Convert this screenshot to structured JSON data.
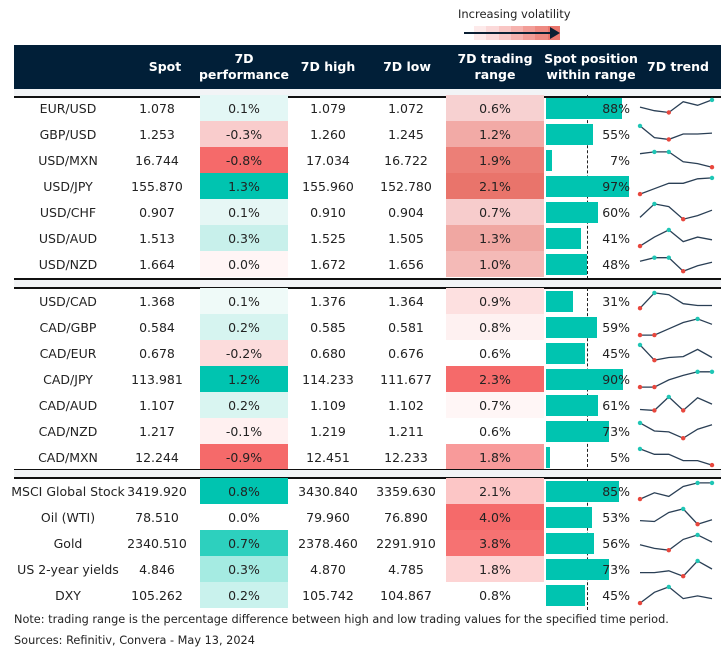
{
  "legend": {
    "label": "Increasing volatility",
    "gradient_colors": [
      "#fdeaea",
      "#fbd9d9",
      "#f9c6c4",
      "#f6b2ae",
      "#f29d97",
      "#ee8a82",
      "#ea766d"
    ]
  },
  "colors": {
    "header_bg": "#011f38",
    "bar": "#00c4b0",
    "spark_line": "#2a3f55",
    "spark_max": "#1fc6b5",
    "spark_min": "#e8473d"
  },
  "chart_data": {
    "type": "table",
    "title": "FX and market snapshot — 7 day",
    "columns": [
      "",
      "Spot",
      "7D performance",
      "7D high",
      "7D low",
      "7D trading range",
      "Spot position within range",
      "7D trend"
    ],
    "header": {
      "spot": "Spot",
      "perf": "7D\nperformance",
      "high": "7D high",
      "low": "7D low",
      "range": "7D trading\nrange",
      "position": "Spot position\nwithin range",
      "trend": "7D trend"
    },
    "sections": [
      {
        "rows": [
          {
            "name": "EUR/USD",
            "spot": "1.078",
            "perf": "0.1%",
            "perf_color": "#e3f7f5",
            "high": "1.079",
            "low": "1.072",
            "range": "0.6%",
            "range_color": "#f7d1d1",
            "position_pct": 88,
            "position": "88%",
            "trend": [
              0.55,
              0.35,
              0.25,
              0.85,
              0.65,
              0.95
            ]
          },
          {
            "name": "GBP/USD",
            "spot": "1.253",
            "perf": "-0.3%",
            "perf_color": "#f9cccc",
            "high": "1.260",
            "low": "1.245",
            "range": "1.2%",
            "range_color": "#f2aaa6",
            "position_pct": 55,
            "position": "55%",
            "trend": [
              0.95,
              0.3,
              0.2,
              0.5,
              0.5,
              0.55
            ]
          },
          {
            "name": "USD/MXN",
            "spot": "16.744",
            "perf": "-0.8%",
            "perf_color": "#f56a6a",
            "high": "17.034",
            "low": "16.722",
            "range": "1.9%",
            "range_color": "#ec7f77",
            "position_pct": 7,
            "position": "7%",
            "trend": [
              0.85,
              0.95,
              0.95,
              0.4,
              0.3,
              0.1
            ]
          },
          {
            "name": "USD/JPY",
            "spot": "155.870",
            "perf": "1.3%",
            "perf_color": "#00c4b0",
            "high": "155.960",
            "low": "152.780",
            "range": "2.1%",
            "range_color": "#e9746b",
            "position_pct": 97,
            "position": "97%",
            "trend": [
              0.05,
              0.35,
              0.65,
              0.65,
              0.9,
              0.95
            ]
          },
          {
            "name": "USD/CHF",
            "spot": "0.907",
            "perf": "0.1%",
            "perf_color": "#e6f7f5",
            "high": "0.910",
            "low": "0.904",
            "range": "0.7%",
            "range_color": "#f7cccc",
            "position_pct": 60,
            "position": "60%",
            "trend": [
              0.2,
              0.95,
              0.8,
              0.1,
              0.3,
              0.6
            ]
          },
          {
            "name": "USD/AUD",
            "spot": "1.513",
            "perf": "0.3%",
            "perf_color": "#c8f0eb",
            "high": "1.525",
            "low": "1.505",
            "range": "1.3%",
            "range_color": "#f0a7a2",
            "position_pct": 41,
            "position": "41%",
            "trend": [
              0.05,
              0.55,
              0.95,
              0.3,
              0.55,
              0.4
            ]
          },
          {
            "name": "USD/NZD",
            "spot": "1.664",
            "perf": "0.0%",
            "perf_color": "#fff5f5",
            "high": "1.672",
            "low": "1.656",
            "range": "1.0%",
            "range_color": "#f4bab7",
            "position_pct": 48,
            "position": "48%",
            "trend": [
              0.65,
              0.85,
              0.85,
              0.1,
              0.4,
              0.6
            ]
          }
        ]
      },
      {
        "rows": [
          {
            "name": "USD/CAD",
            "spot": "1.368",
            "perf": "0.1%",
            "perf_color": "#effaf8",
            "high": "1.376",
            "low": "1.364",
            "range": "0.9%",
            "range_color": "#fde0e0",
            "position_pct": 31,
            "position": "31%",
            "trend": [
              0.1,
              0.95,
              0.85,
              0.35,
              0.25,
              0.25
            ]
          },
          {
            "name": "CAD/GBP",
            "spot": "0.584",
            "perf": "0.2%",
            "perf_color": "#d6f4f0",
            "high": "0.585",
            "low": "0.581",
            "range": "0.8%",
            "range_color": "#fef1f1",
            "position_pct": 59,
            "position": "59%",
            "trend": [
              0.05,
              0.05,
              0.4,
              0.75,
              0.95,
              0.65
            ]
          },
          {
            "name": "CAD/EUR",
            "spot": "0.678",
            "perf": "-0.2%",
            "perf_color": "#fcdcdc",
            "high": "0.680",
            "low": "0.676",
            "range": "0.6%",
            "range_color": "#ffffff",
            "position_pct": 45,
            "position": "45%",
            "trend": [
              0.95,
              0.1,
              0.25,
              0.3,
              0.7,
              0.25
            ]
          },
          {
            "name": "CAD/JPY",
            "spot": "113.981",
            "perf": "1.2%",
            "perf_color": "#00c4b0",
            "high": "114.233",
            "low": "111.677",
            "range": "2.3%",
            "range_color": "#f56a6a",
            "position_pct": 90,
            "position": "90%",
            "trend": [
              0.05,
              0.05,
              0.45,
              0.7,
              0.9,
              0.9
            ]
          },
          {
            "name": "CAD/AUD",
            "spot": "1.107",
            "perf": "0.2%",
            "perf_color": "#d9f5f1",
            "high": "1.109",
            "low": "1.102",
            "range": "0.7%",
            "range_color": "#fff6f6",
            "position_pct": 61,
            "position": "61%",
            "trend": [
              0.25,
              0.2,
              0.95,
              0.2,
              0.9,
              0.55
            ]
          },
          {
            "name": "CAD/NZD",
            "spot": "1.217",
            "perf": "-0.1%",
            "perf_color": "#fff0f0",
            "high": "1.219",
            "low": "1.211",
            "range": "0.6%",
            "range_color": "#ffffff",
            "position_pct": 73,
            "position": "73%",
            "trend": [
              0.95,
              0.5,
              0.45,
              0.1,
              0.6,
              0.85
            ]
          },
          {
            "name": "CAD/MXN",
            "spot": "12.244",
            "perf": "-0.9%",
            "perf_color": "#f56a6a",
            "high": "12.451",
            "low": "12.233",
            "range": "1.8%",
            "range_color": "#f89a9a",
            "position_pct": 5,
            "position": "5%",
            "trend": [
              0.95,
              0.65,
              0.65,
              0.3,
              0.3,
              0.05
            ]
          }
        ]
      },
      {
        "rows": [
          {
            "name": "MSCI Global Stock",
            "spot": "3419.920",
            "perf": "0.8%",
            "perf_color": "#00c4b0",
            "high": "3430.840",
            "low": "3359.630",
            "range": "2.1%",
            "range_color": "#fcc6c6",
            "position_pct": 85,
            "position": "85%",
            "trend": [
              0.05,
              0.4,
              0.2,
              0.75,
              0.95,
              0.95
            ]
          },
          {
            "name": "Oil (WTI)",
            "spot": "78.510",
            "perf": "0.0%",
            "perf_color": "#ffffff",
            "high": "79.960",
            "low": "76.890",
            "range": "4.0%",
            "range_color": "#f56a6a",
            "position_pct": 53,
            "position": "53%",
            "trend": [
              0.3,
              0.25,
              0.75,
              0.95,
              0.1,
              0.35
            ]
          },
          {
            "name": "Gold",
            "spot": "2340.510",
            "perf": "0.7%",
            "perf_color": "#2dd0be",
            "high": "2378.460",
            "low": "2291.910",
            "range": "3.8%",
            "range_color": "#f67272",
            "position_pct": 56,
            "position": "56%",
            "trend": [
              0.4,
              0.2,
              0.1,
              0.7,
              0.95,
              0.55
            ]
          },
          {
            "name": "US 2-year yields",
            "spot": "4.846",
            "perf": "0.3%",
            "perf_color": "#a5ebe2",
            "high": "4.870",
            "low": "4.785",
            "range": "1.8%",
            "range_color": "#fdd4d4",
            "position_pct": 73,
            "position": "73%",
            "trend": [
              0.3,
              0.3,
              0.4,
              0.1,
              0.95,
              0.5
            ]
          },
          {
            "name": "DXY",
            "spot": "105.262",
            "perf": "0.2%",
            "perf_color": "#c9f2ed",
            "high": "105.742",
            "low": "104.867",
            "range": "0.8%",
            "range_color": "#ffffff",
            "position_pct": 45,
            "position": "45%",
            "trend": [
              0.05,
              0.65,
              0.95,
              0.3,
              0.45,
              0.3
            ]
          }
        ]
      }
    ]
  },
  "footer": {
    "note": "Note: trading range is the percentage difference between high and low trading values for the specified time period.",
    "sources": "Sources: Refinitiv, Convera - May 13, 2024"
  }
}
